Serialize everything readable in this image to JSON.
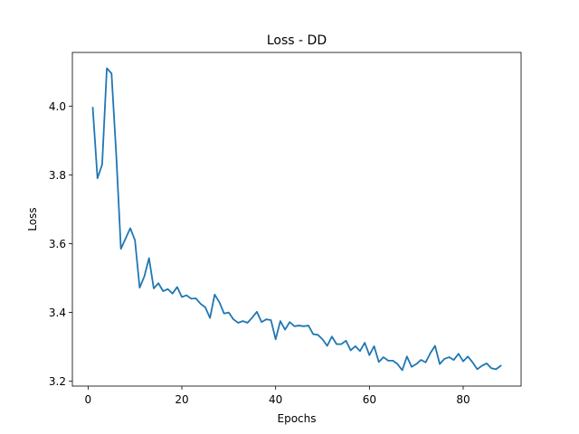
{
  "chart_data": {
    "type": "line",
    "title": "Loss - DD",
    "xlabel": "Epochs",
    "ylabel": "Loss",
    "xlim": [
      -3.35,
      92.35
    ],
    "ylim": [
      3.186,
      4.156
    ],
    "xticks": [
      0,
      20,
      40,
      60,
      80
    ],
    "yticks": [
      3.2,
      3.4,
      3.6,
      3.8,
      4.0
    ],
    "xtick_labels": [
      "0",
      "20",
      "40",
      "60",
      "80"
    ],
    "ytick_labels": [
      "3.2",
      "3.4",
      "3.6",
      "3.8",
      "4.0"
    ],
    "grid": false,
    "line_color": "#1f77b4",
    "series": [
      {
        "x": [
          1,
          2,
          3,
          4,
          5,
          6,
          7,
          8,
          9,
          10,
          11,
          12,
          13,
          14,
          15,
          16,
          17,
          18,
          19,
          20,
          21,
          22,
          23,
          24,
          25,
          26,
          27,
          28,
          29,
          30,
          31,
          32,
          33,
          34,
          35,
          36,
          37,
          38,
          39,
          40,
          41,
          42,
          43,
          44,
          45,
          46,
          47,
          48,
          49,
          50,
          51,
          52,
          53,
          54,
          55,
          56,
          57,
          58,
          59,
          60,
          61,
          62,
          63,
          64,
          65,
          66,
          67,
          68,
          69,
          70,
          71,
          72,
          73,
          74,
          75,
          76,
          77,
          78,
          79,
          80,
          81,
          82,
          83,
          84,
          85,
          86,
          87,
          88
        ],
        "values": [
          3.995,
          3.79,
          3.83,
          4.11,
          4.095,
          3.86,
          3.585,
          3.615,
          3.645,
          3.61,
          3.472,
          3.505,
          3.558,
          3.47,
          3.485,
          3.462,
          3.468,
          3.455,
          3.474,
          3.445,
          3.45,
          3.44,
          3.441,
          3.425,
          3.415,
          3.384,
          3.452,
          3.43,
          3.397,
          3.4,
          3.38,
          3.37,
          3.375,
          3.37,
          3.385,
          3.402,
          3.372,
          3.38,
          3.378,
          3.322,
          3.375,
          3.35,
          3.372,
          3.36,
          3.362,
          3.36,
          3.362,
          3.337,
          3.335,
          3.322,
          3.303,
          3.33,
          3.308,
          3.308,
          3.318,
          3.29,
          3.302,
          3.288,
          3.312,
          3.276,
          3.302,
          3.256,
          3.27,
          3.26,
          3.26,
          3.25,
          3.232,
          3.272,
          3.242,
          3.25,
          3.262,
          3.255,
          3.282,
          3.303,
          3.25,
          3.265,
          3.27,
          3.262,
          3.28,
          3.258,
          3.272,
          3.255,
          3.235,
          3.245,
          3.252,
          3.238,
          3.235,
          3.245
        ]
      }
    ]
  }
}
